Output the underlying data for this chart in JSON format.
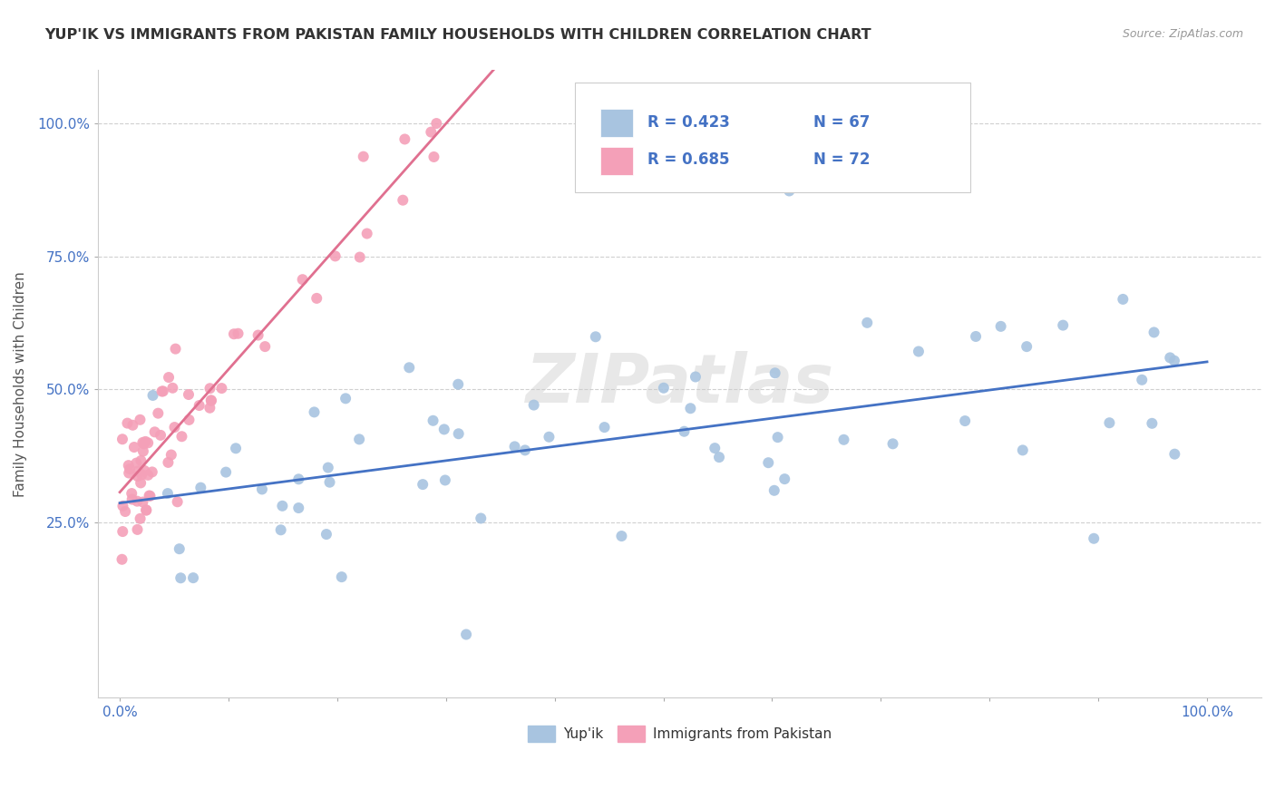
{
  "title": "YUP'IK VS IMMIGRANTS FROM PAKISTAN FAMILY HOUSEHOLDS WITH CHILDREN CORRELATION CHART",
  "source_text": "Source: ZipAtlas.com",
  "ylabel": "Family Households with Children",
  "blue_R": 0.423,
  "blue_N": 67,
  "pink_R": 0.685,
  "pink_N": 72,
  "blue_color": "#a8c4e0",
  "pink_color": "#f4a0b8",
  "blue_line_color": "#4472c4",
  "pink_line_color": "#e07090",
  "legend_label_blue": "Yup'ik",
  "legend_label_pink": "Immigrants from Pakistan",
  "watermark": "ZIPatlas",
  "grid_color": "#d0d0d0",
  "title_color": "#333333",
  "axis_tick_color": "#4472c4",
  "source_color": "#999999"
}
